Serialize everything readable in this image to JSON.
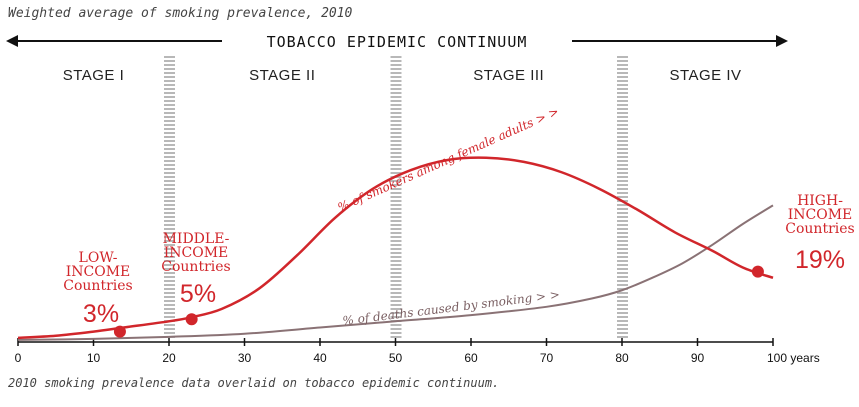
{
  "subtitle": "Weighted average of smoking prevalence, 2010",
  "caption": "2010 smoking prevalence data overlaid on tobacco epidemic continuum.",
  "continuum_label": "TOBACCO EPIDEMIC CONTINUUM",
  "stages": [
    {
      "label": "STAGE I",
      "from": 0,
      "to": 20
    },
    {
      "label": "STAGE II",
      "from": 20,
      "to": 50
    },
    {
      "label": "STAGE III",
      "from": 50,
      "to": 80
    },
    {
      "label": "STAGE IV",
      "from": 80,
      "to": 100
    }
  ],
  "colors": {
    "female_curve": "#d1262b",
    "deaths_curve": "#8a7275",
    "stage_divider": "#b8b8b8",
    "axis": "#111111"
  },
  "chart_data": {
    "type": "line",
    "xlim": [
      0,
      100
    ],
    "ylim": [
      0,
      1
    ],
    "x_ticks": [
      "0",
      "10",
      "20",
      "30",
      "40",
      "50",
      "60",
      "70",
      "80",
      "90",
      "100 years"
    ],
    "stage_dividers": [
      20,
      50,
      80
    ],
    "series": [
      {
        "name": "% of smokers among female adults > >",
        "points": [
          [
            0,
            0.02
          ],
          [
            5,
            0.03
          ],
          [
            10,
            0.05
          ],
          [
            14,
            0.07
          ],
          [
            20,
            0.1
          ],
          [
            23,
            0.12
          ],
          [
            27,
            0.16
          ],
          [
            32,
            0.26
          ],
          [
            37,
            0.42
          ],
          [
            42,
            0.6
          ],
          [
            47,
            0.74
          ],
          [
            52,
            0.83
          ],
          [
            57,
            0.88
          ],
          [
            62,
            0.89
          ],
          [
            67,
            0.87
          ],
          [
            72,
            0.82
          ],
          [
            77,
            0.74
          ],
          [
            82,
            0.64
          ],
          [
            87,
            0.53
          ],
          [
            92,
            0.44
          ],
          [
            96,
            0.36
          ],
          [
            100,
            0.31
          ]
        ]
      },
      {
        "name": "% of deaths caused by smoking > >",
        "points": [
          [
            0,
            0.01
          ],
          [
            10,
            0.015
          ],
          [
            20,
            0.025
          ],
          [
            30,
            0.04
          ],
          [
            40,
            0.07
          ],
          [
            50,
            0.1
          ],
          [
            60,
            0.13
          ],
          [
            70,
            0.17
          ],
          [
            76,
            0.21
          ],
          [
            80,
            0.25
          ],
          [
            84,
            0.31
          ],
          [
            88,
            0.38
          ],
          [
            92,
            0.47
          ],
          [
            96,
            0.57
          ],
          [
            100,
            0.66
          ]
        ]
      }
    ],
    "groups": [
      {
        "name_lines": [
          "LOW-",
          "INCOME",
          "Countries"
        ],
        "value": "3%",
        "x": 13.5,
        "y": 0.05
      },
      {
        "name_lines": [
          "MIDDLE-",
          "INCOME",
          "Countries"
        ],
        "value": "5%",
        "x": 23,
        "y": 0.11
      },
      {
        "name_lines": [
          "HIGH-",
          "INCOME",
          "Countries"
        ],
        "value": "19%",
        "x": 98,
        "y": 0.34
      }
    ]
  }
}
